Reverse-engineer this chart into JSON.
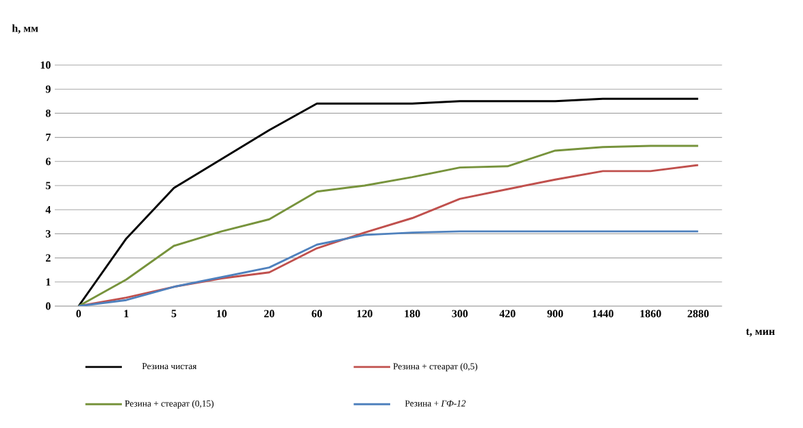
{
  "chart_data": {
    "type": "line",
    "xlabel": "t, мин",
    "ylabel": "h, мм",
    "categories": [
      "0",
      "1",
      "5",
      "10",
      "20",
      "60",
      "120",
      "180",
      "300",
      "420",
      "900",
      "1440",
      "1860",
      "2880"
    ],
    "series": [
      {
        "name": "Резина чистая",
        "color": "#000000",
        "values": [
          0,
          2.8,
          4.9,
          6.1,
          7.3,
          8.4,
          8.4,
          8.4,
          8.5,
          8.5,
          8.5,
          8.6,
          8.6,
          8.6
        ]
      },
      {
        "name": "Резина + стеарат (0,5)",
        "color": "#c0504d",
        "values": [
          0,
          0.35,
          0.8,
          1.15,
          1.4,
          2.4,
          3.05,
          3.65,
          4.45,
          4.85,
          5.25,
          5.6,
          5.6,
          5.85
        ]
      },
      {
        "name": "Резина + стеарат (0,15)",
        "color": "#77933c",
        "values": [
          0,
          1.1,
          2.5,
          3.1,
          3.6,
          4.75,
          5.0,
          5.35,
          5.75,
          5.8,
          6.45,
          6.6,
          6.65,
          6.65
        ]
      },
      {
        "name": "Резина + *ГФ-12*",
        "color": "#4f81bd",
        "values": [
          0,
          0.25,
          0.8,
          1.2,
          1.6,
          2.55,
          2.95,
          3.05,
          3.1,
          3.1,
          3.1,
          3.1,
          3.1,
          3.1
        ]
      }
    ],
    "ylim": [
      0,
      10
    ],
    "yticks": [
      0,
      1,
      2,
      3,
      4,
      5,
      6,
      7,
      8,
      9,
      10
    ],
    "grid": "y",
    "legend": "bottom",
    "marker": "none",
    "line_style": "solid"
  }
}
